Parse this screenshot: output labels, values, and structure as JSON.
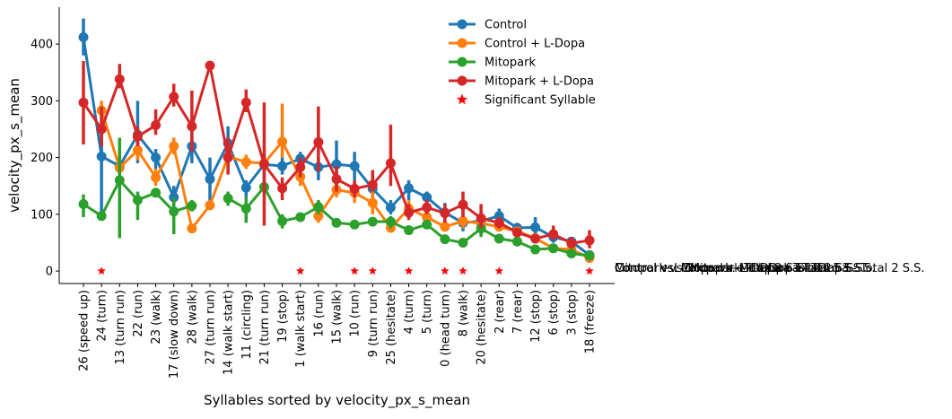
{
  "chart_data": {
    "type": "line",
    "xlabel": "Syllables sorted by velocity_px_s_mean",
    "ylabel": "velocity_px_s_mean",
    "ylim": [
      -22,
      465
    ],
    "yticks": [
      0,
      100,
      200,
      300,
      400
    ],
    "categories": [
      "26 (speed up)",
      "24 (turn)",
      "13 (turn run)",
      "22 (run)",
      "23 (walk)",
      "17 (slow down)",
      "28 (walk)",
      "27 (turn run)",
      "14 (walk start)",
      "11 (circling)",
      "21 (turn run)",
      "19 (stop)",
      "1 (walk start)",
      "16 (run)",
      "15 (walk)",
      "10 (run)",
      "9 (turn run)",
      "25 (hesitate)",
      "4 (turn)",
      "5 (turn)",
      "0 (head turn)",
      "8 (walk)",
      "20 (hesitate)",
      "2 (rear)",
      "7 (rear)",
      "12 (stop)",
      "6 (stop)",
      "3 (stop)",
      "18 (freeze)"
    ],
    "series": [
      {
        "name": "Control",
        "color": "#1f77b4",
        "values": [
          412,
          202,
          185,
          240,
          200,
          130,
          220,
          162,
          225,
          147,
          188,
          185,
          198,
          183,
          188,
          185,
          145,
          112,
          146,
          130,
          103,
          85,
          88,
          97,
          76,
          77,
          60,
          52,
          28
        ],
        "err_low": [
          380,
          100,
          170,
          190,
          180,
          100,
          190,
          120,
          195,
          130,
          160,
          170,
          180,
          160,
          140,
          160,
          120,
          100,
          125,
          120,
          80,
          70,
          80,
          80,
          70,
          60,
          50,
          40,
          20
        ],
        "err_high": [
          445,
          290,
          200,
          300,
          215,
          150,
          250,
          200,
          255,
          160,
          205,
          200,
          210,
          200,
          230,
          210,
          170,
          125,
          160,
          140,
          120,
          110,
          100,
          110,
          85,
          95,
          75,
          60,
          35
        ]
      },
      {
        "name": "Control + L-Dopa",
        "color": "#ff7f0e",
        "values": [
          null,
          283,
          182,
          213,
          165,
          220,
          75,
          116,
          202,
          192,
          190,
          228,
          166,
          97,
          143,
          138,
          120,
          76,
          110,
          95,
          78,
          88,
          84,
          78,
          70,
          58,
          40,
          38,
          23
        ],
        "err_low": [
          null,
          255,
          170,
          195,
          150,
          205,
          70,
          110,
          190,
          180,
          175,
          200,
          150,
          85,
          130,
          120,
          100,
          70,
          95,
          85,
          70,
          75,
          75,
          70,
          62,
          50,
          35,
          32,
          18
        ],
        "err_high": [
          null,
          300,
          195,
          230,
          180,
          235,
          80,
          125,
          215,
          205,
          205,
          295,
          185,
          110,
          160,
          160,
          140,
          85,
          125,
          108,
          88,
          100,
          95,
          88,
          78,
          66,
          46,
          44,
          29
        ]
      },
      {
        "name": "Mitopark",
        "color": "#2ca02c",
        "values": [
          118,
          97,
          160,
          125,
          138,
          105,
          115,
          null,
          128,
          110,
          148,
          88,
          95,
          113,
          85,
          82,
          87,
          87,
          72,
          82,
          56,
          50,
          75,
          57,
          52,
          38,
          40,
          31,
          27
        ],
        "err_low": [
          95,
          90,
          58,
          90,
          130,
          65,
          105,
          null,
          115,
          85,
          135,
          75,
          90,
          100,
          80,
          75,
          80,
          75,
          65,
          75,
          48,
          45,
          60,
          50,
          45,
          32,
          35,
          26,
          22
        ],
        "err_high": [
          135,
          105,
          235,
          140,
          145,
          130,
          125,
          null,
          140,
          130,
          160,
          100,
          100,
          125,
          90,
          90,
          95,
          97,
          80,
          90,
          64,
          56,
          90,
          64,
          58,
          44,
          45,
          36,
          32
        ]
      },
      {
        "name": "Mitopark + L-Dopa",
        "color": "#d62728",
        "values": [
          297,
          250,
          338,
          237,
          257,
          307,
          255,
          362,
          200,
          297,
          188,
          146,
          183,
          227,
          162,
          145,
          152,
          190,
          103,
          112,
          102,
          117,
          93,
          85,
          68,
          57,
          65,
          49,
          54
        ],
        "err_low": [
          223,
          220,
          322,
          220,
          240,
          290,
          210,
          355,
          170,
          280,
          80,
          125,
          165,
          175,
          140,
          130,
          140,
          150,
          90,
          100,
          85,
          95,
          75,
          75,
          60,
          50,
          55,
          40,
          40
        ],
        "err_high": [
          370,
          290,
          365,
          255,
          285,
          330,
          318,
          370,
          235,
          320,
          297,
          165,
          200,
          290,
          185,
          160,
          178,
          258,
          118,
          125,
          118,
          140,
          118,
          95,
          76,
          65,
          80,
          60,
          72
        ]
      }
    ],
    "significant": {
      "name": "Significant Syllable",
      "color": "#ff0000",
      "categories": [
        "24 (turn)",
        "1 (walk start)",
        "10 (run)",
        "9 (turn run)",
        "4 (turn)",
        "0 (head turn)",
        "8 (walk)",
        "2 (rear)",
        "18 (freeze)"
      ],
      "value": 0
    },
    "legend_position": "top-right",
    "grid": false,
    "annotations": [
      "Control vs. Control + L-Dopa - Total 2 S.S.",
      "Control vs. Mitopark - Total 2 S.S.",
      "Control vs. Mitopark + L-Dopa - Total 5 S.S.",
      "Mitopark vs. Mitopark + L-Dopa - Total 3 S.S.",
      "Control + L-Dopa vs. Mitopark + L-Dopa - Total 2 S.S."
    ]
  }
}
